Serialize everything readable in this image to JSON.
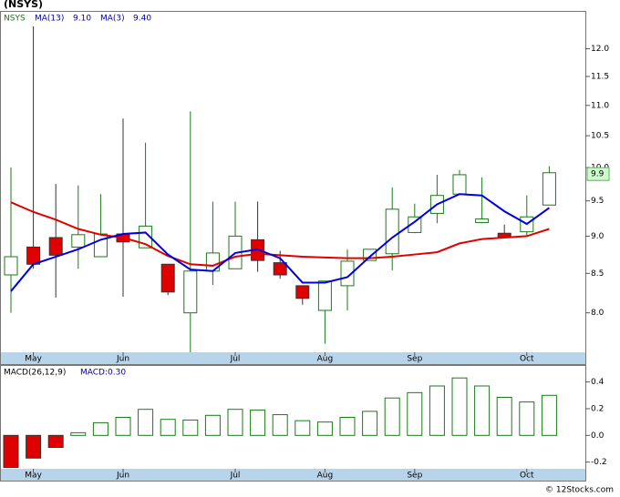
{
  "title": "(NSYS)",
  "footer": "© 12Stocks.com",
  "chart_data": [
    {
      "type": "candlestick",
      "categories": [
        null,
        "May",
        null,
        null,
        null,
        "Jun",
        null,
        null,
        null,
        null,
        "Jul",
        null,
        null,
        null,
        "Aug",
        null,
        null,
        null,
        "Sep",
        null,
        null,
        null,
        null,
        "Oct",
        null
      ],
      "ohlc": {
        "name": "NSYS",
        "up_color": "#1a7a1a",
        "down_color": "#e00000",
        "open": [
          8.48,
          8.85,
          8.98,
          8.85,
          8.72,
          9.03,
          8.84,
          8.62,
          8.0,
          8.53,
          8.56,
          8.95,
          8.64,
          8.34,
          8.03,
          8.34,
          8.67,
          8.76,
          9.05,
          9.32,
          9.6,
          9.19,
          9.04,
          9.06,
          9.44
        ],
        "high": [
          10.0,
          12.42,
          9.75,
          9.73,
          9.6,
          10.78,
          10.39,
          8.62,
          10.9,
          9.49,
          9.49,
          9.49,
          8.8,
          8.34,
          8.4,
          8.82,
          8.82,
          9.7,
          9.46,
          9.89,
          9.96,
          9.85,
          9.16,
          9.58,
          10.02
        ],
        "low": [
          8.0,
          8.56,
          8.19,
          8.56,
          8.72,
          8.2,
          8.84,
          8.22,
          7.53,
          8.35,
          8.56,
          8.52,
          8.43,
          8.1,
          7.63,
          8.03,
          8.67,
          8.54,
          9.04,
          9.18,
          9.6,
          9.18,
          8.98,
          9.0,
          9.44
        ],
        "close": [
          8.72,
          8.62,
          8.74,
          9.02,
          9.03,
          8.92,
          9.14,
          8.26,
          8.53,
          8.77,
          9.0,
          8.67,
          8.48,
          8.18,
          8.4,
          8.66,
          8.82,
          9.38,
          9.27,
          9.58,
          9.89,
          9.24,
          8.98,
          9.27,
          9.92
        ]
      },
      "series": [
        {
          "name": "MA(13)",
          "label": "9.10",
          "color": "#e00000",
          "values": [
            9.48,
            9.34,
            9.23,
            9.1,
            9.02,
            8.98,
            8.89,
            8.73,
            8.62,
            8.6,
            8.72,
            8.76,
            8.74,
            8.72,
            8.71,
            8.7,
            8.7,
            8.72,
            8.75,
            8.78,
            8.9,
            8.96,
            8.98,
            9.0,
            9.1
          ]
        },
        {
          "name": "MA(3)",
          "label": "9.40",
          "color": "#0000dd",
          "values": [
            8.27,
            8.62,
            8.72,
            8.82,
            8.95,
            9.03,
            9.05,
            8.75,
            8.55,
            8.53,
            8.77,
            8.82,
            8.7,
            8.38,
            8.38,
            8.45,
            8.72,
            8.98,
            9.2,
            9.45,
            9.6,
            9.58,
            9.35,
            9.17,
            9.4
          ]
        }
      ],
      "ylim": [
        7.53,
        12.7
      ],
      "log_scale": true,
      "yticks": [
        {
          "value": 8,
          "label": "8.0"
        },
        8.5,
        {
          "value": 9,
          "label": "9.0"
        },
        9.5,
        {
          "value": 10,
          "label": "10.0"
        },
        10.5,
        {
          "value": 11,
          "label": "11.0"
        },
        11.5,
        {
          "value": 12,
          "label": "12.0"
        }
      ],
      "last_price": 9.9
    },
    {
      "type": "bar",
      "name": "MACD(26,12,9)",
      "label": "MACD:0.30",
      "categories": [
        null,
        "May",
        null,
        null,
        null,
        "Jun",
        null,
        null,
        null,
        null,
        "Jul",
        null,
        null,
        null,
        "Aug",
        null,
        null,
        null,
        "Sep",
        null,
        null,
        null,
        null,
        "Oct",
        null
      ],
      "values": [
        -0.24,
        -0.17,
        -0.09,
        0.02,
        0.095,
        0.135,
        0.195,
        0.12,
        0.115,
        0.15,
        0.195,
        0.19,
        0.155,
        0.11,
        0.1,
        0.135,
        0.18,
        0.28,
        0.32,
        0.37,
        0.43,
        0.37,
        0.285,
        0.25,
        0.3
      ],
      "pos_color": "#1a7a1a",
      "neg_color": "#e00000",
      "ylim": [
        -0.25,
        0.52
      ],
      "yticks": [
        -0.2,
        {
          "value": 0,
          "label": "0.0"
        },
        0.2,
        0.4
      ]
    }
  ]
}
